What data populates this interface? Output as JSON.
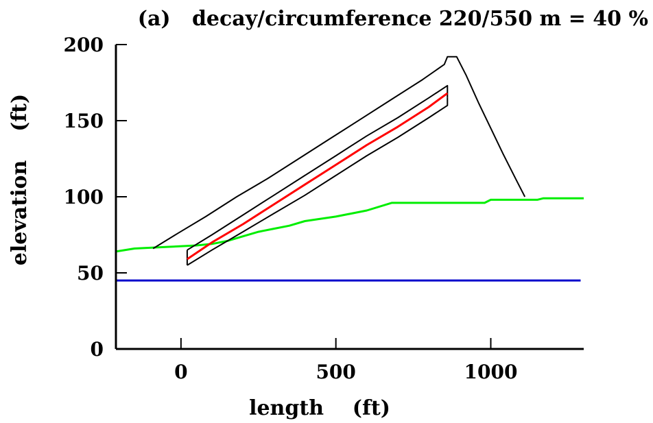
{
  "chart_data": {
    "type": "line",
    "title": "(a)   decay/circumference 220/550 m = 40 %",
    "xlabel": "length    (ft)",
    "ylabel": "elevation    (ft)",
    "xlim": [
      -210,
      1300
    ],
    "ylim": [
      0,
      200
    ],
    "x_ticks": [
      0,
      500,
      1000
    ],
    "y_ticks": [
      0,
      50,
      100,
      150,
      200
    ],
    "grid": false,
    "legend": "none",
    "series": [
      {
        "color": "#0000cc",
        "points": [
          [
            -210,
            45
          ],
          [
            1290,
            45
          ]
        ]
      },
      {
        "color": "#00ee00",
        "points": [
          [
            -210,
            64
          ],
          [
            -150,
            66
          ],
          [
            -50,
            67
          ],
          [
            50,
            68
          ],
          [
            100,
            69
          ],
          [
            150,
            71
          ],
          [
            200,
            74
          ],
          [
            250,
            77
          ],
          [
            300,
            79
          ],
          [
            350,
            81
          ],
          [
            400,
            84
          ],
          [
            500,
            87
          ],
          [
            600,
            91
          ],
          [
            680,
            96
          ],
          [
            800,
            96
          ],
          [
            980,
            96
          ],
          [
            1000,
            98
          ],
          [
            1150,
            98
          ],
          [
            1170,
            99
          ],
          [
            1300,
            99
          ]
        ]
      },
      {
        "color": "#000000",
        "points": [
          [
            -90,
            66
          ],
          [
            -10,
            76
          ],
          [
            80,
            87
          ],
          [
            180,
            100
          ],
          [
            280,
            112
          ],
          [
            380,
            125
          ],
          [
            480,
            138
          ],
          [
            580,
            151
          ],
          [
            680,
            164
          ],
          [
            780,
            177
          ],
          [
            850,
            187
          ],
          [
            860,
            192
          ],
          [
            890,
            192
          ],
          [
            920,
            180
          ],
          [
            960,
            162
          ],
          [
            1000,
            145
          ],
          [
            1040,
            128
          ],
          [
            1080,
            112
          ],
          [
            1110,
            100
          ]
        ]
      },
      {
        "color": "#000000",
        "points": [
          [
            20,
            65
          ],
          [
            100,
            75
          ],
          [
            200,
            88
          ],
          [
            300,
            101
          ],
          [
            400,
            114
          ],
          [
            500,
            127
          ],
          [
            600,
            140
          ],
          [
            700,
            152
          ],
          [
            800,
            165
          ],
          [
            860,
            173
          ],
          [
            860,
            165
          ]
        ]
      },
      {
        "color": "#000000",
        "points": [
          [
            20,
            55
          ],
          [
            20,
            65
          ]
        ]
      },
      {
        "color": "#000000",
        "points": [
          [
            20,
            55
          ],
          [
            100,
            65
          ],
          [
            200,
            77
          ],
          [
            300,
            89
          ],
          [
            400,
            101
          ],
          [
            500,
            114
          ],
          [
            600,
            127
          ],
          [
            700,
            139
          ],
          [
            800,
            152
          ],
          [
            860,
            160
          ],
          [
            860,
            165
          ]
        ]
      },
      {
        "color": "#ff0000",
        "points": [
          [
            20,
            59
          ],
          [
            100,
            70
          ],
          [
            200,
            82
          ],
          [
            300,
            95
          ],
          [
            400,
            108
          ],
          [
            500,
            121
          ],
          [
            600,
            134
          ],
          [
            700,
            146
          ],
          [
            800,
            159
          ],
          [
            860,
            168
          ]
        ]
      }
    ]
  }
}
